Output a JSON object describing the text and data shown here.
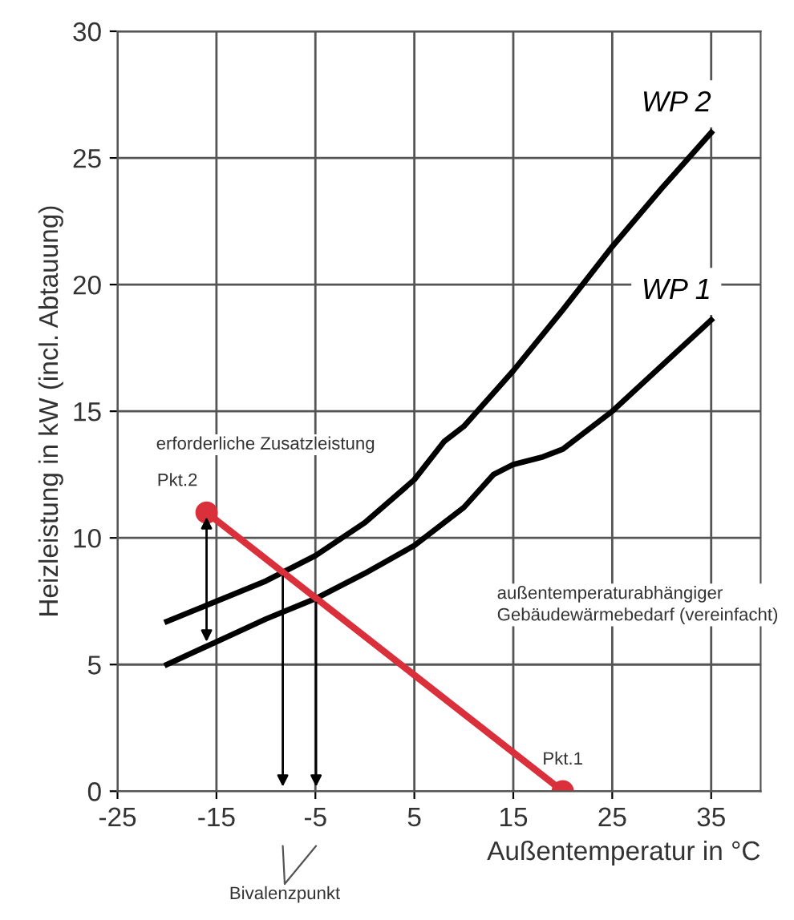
{
  "chart_data": {
    "type": "line",
    "xlabel": "Außentemperatur in °C",
    "ylabel": "Heizleistung in kW (incl. Abtauung)",
    "xlim": [
      -25,
      40
    ],
    "xticks": [
      -25,
      -15,
      -5,
      5,
      15,
      25,
      35
    ],
    "ylim": [
      0,
      30
    ],
    "yticks": [
      0,
      5,
      10,
      15,
      20,
      25,
      30
    ],
    "grid": true,
    "legend": false,
    "line_style": "solid",
    "series": [
      {
        "name": "WP 2",
        "color": "#000000",
        "marker": "none",
        "x": [
          -20,
          -15,
          -10,
          -5,
          0,
          5,
          8,
          10,
          15,
          20,
          25,
          30,
          35
        ],
        "values": [
          6.7,
          7.5,
          8.3,
          9.3,
          10.6,
          12.3,
          13.8,
          14.4,
          16.6,
          19.0,
          21.5,
          23.8,
          26.0
        ]
      },
      {
        "name": "WP 1",
        "color": "#000000",
        "marker": "none",
        "x": [
          -20,
          -15,
          -10,
          -5,
          0,
          5,
          10,
          13,
          15,
          18,
          20,
          25,
          30,
          35
        ],
        "values": [
          5.0,
          5.9,
          6.8,
          7.6,
          8.6,
          9.7,
          11.2,
          12.5,
          12.9,
          13.2,
          13.5,
          15.0,
          16.8,
          18.6
        ]
      },
      {
        "color": "#d9303c",
        "marker": "circle",
        "x": [
          -16,
          20
        ],
        "values": [
          11,
          0
        ]
      }
    ],
    "annotations": [
      {
        "text": "Pkt.2",
        "x": -16,
        "y": 11
      },
      {
        "text": "Pkt.1",
        "x": 20,
        "y": 0
      },
      "erforderliche Zusatzleistung",
      "außentemperaturabhängiger\nGebäudewärmebedarf (vereinfacht)",
      "Bivalenzpunkt"
    ]
  }
}
